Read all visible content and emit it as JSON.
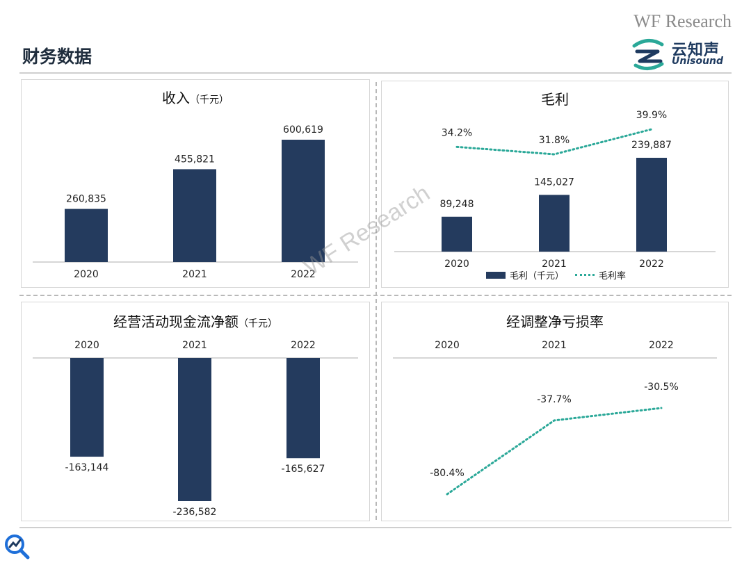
{
  "page_title": "财务数据",
  "brand_top": "WF Research",
  "logo": {
    "cn": "云知声",
    "en": "Unisound"
  },
  "watermark": "WF Research",
  "colors": {
    "bar": "#243b5e",
    "line": "#2aa898",
    "axis": "#c8c8c8"
  },
  "chart_data": [
    {
      "type": "bar",
      "title": "收入",
      "unit": "（千元）",
      "categories": [
        "2020",
        "2021",
        "2022"
      ],
      "values": [
        260835,
        455821,
        600619
      ],
      "labels": [
        "260,835",
        "455,821",
        "600,619"
      ]
    },
    {
      "type": "bar+line",
      "title": "毛利",
      "categories": [
        "2020",
        "2021",
        "2022"
      ],
      "series": [
        {
          "name": "毛利（千元）",
          "type": "bar",
          "values": [
            89248,
            145027,
            239887
          ],
          "labels": [
            "89,248",
            "145,027",
            "239,887"
          ]
        },
        {
          "name": "毛利率",
          "type": "line",
          "values": [
            34.2,
            31.8,
            39.9
          ],
          "labels": [
            "34.2%",
            "31.8%",
            "39.9%"
          ]
        }
      ],
      "legend_position": "bottom"
    },
    {
      "type": "bar",
      "title": "经营活动现金流净额",
      "unit": "（千元）",
      "categories": [
        "2020",
        "2021",
        "2022"
      ],
      "values": [
        -163144,
        -236582,
        -165627
      ],
      "labels": [
        "-163,144",
        "-236,582",
        "-165,627"
      ]
    },
    {
      "type": "line",
      "title": "经调整净亏损率",
      "categories": [
        "2020",
        "2021",
        "2022"
      ],
      "values": [
        -80.4,
        -37.7,
        -30.5
      ],
      "labels": [
        "-80.4%",
        "-37.7%",
        "-30.5%"
      ]
    }
  ]
}
